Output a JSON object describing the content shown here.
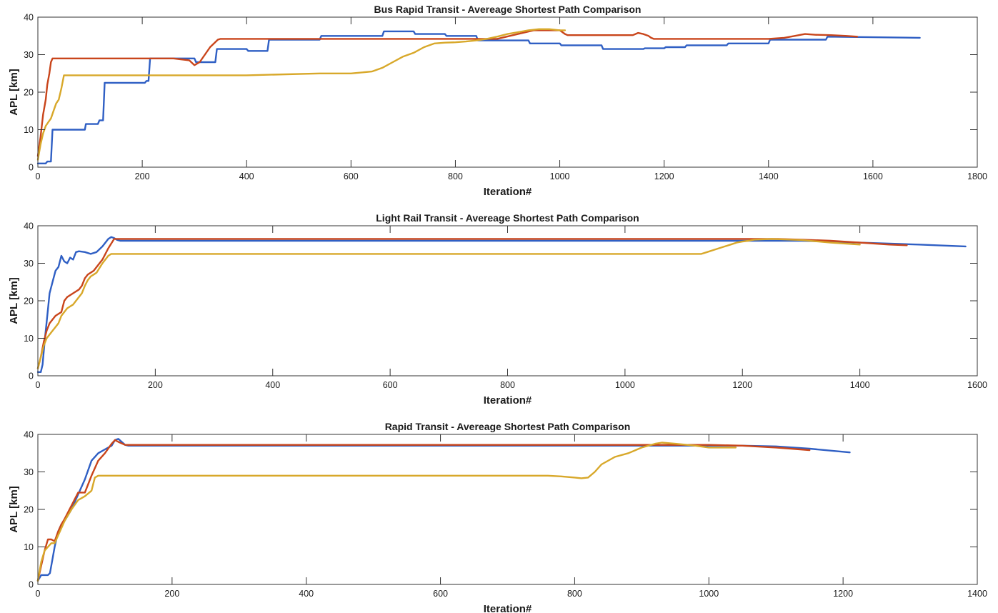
{
  "chart_data": [
    {
      "type": "line",
      "title": "Bus Rapid Transit - Avereage Shortest Path Comparison",
      "xlabel": "Iteration#",
      "ylabel": "APL [km]",
      "xlim": [
        0,
        1800
      ],
      "ylim": [
        0,
        40
      ],
      "xticks": [
        0,
        200,
        400,
        600,
        800,
        1000,
        1200,
        1400,
        1600,
        1800
      ],
      "yticks": [
        0,
        10,
        20,
        30,
        40
      ],
      "grid": false,
      "series": [
        {
          "color": "#2f5fc4",
          "x": [
            0,
            15,
            18,
            25,
            28,
            90,
            92,
            115,
            118,
            125,
            128,
            205,
            208,
            212,
            215,
            300,
            303,
            340,
            343,
            400,
            403,
            440,
            443,
            540,
            543,
            660,
            663,
            720,
            723,
            780,
            783,
            840,
            843,
            940,
            943,
            1000,
            1003,
            1080,
            1083,
            1160,
            1163,
            1200,
            1203,
            1240,
            1243,
            1320,
            1323,
            1400,
            1403,
            1510,
            1513,
            1690
          ],
          "y": [
            1,
            1,
            1.5,
            1.5,
            10,
            10,
            11.5,
            11.5,
            12.5,
            12.5,
            22.5,
            22.5,
            23,
            23,
            29,
            29,
            28,
            28,
            31.5,
            31.5,
            31,
            31,
            34,
            34,
            35,
            35,
            36.2,
            36.2,
            35.5,
            35.5,
            35,
            35,
            33.8,
            33.8,
            33,
            33,
            32.5,
            32.5,
            31.5,
            31.5,
            31.7,
            31.7,
            32,
            32,
            32.5,
            32.5,
            33,
            33,
            34,
            34,
            34.8,
            34.5
          ]
        },
        {
          "color": "#c9451b",
          "x": [
            0,
            5,
            10,
            15,
            18,
            22,
            25,
            28,
            260,
            290,
            300,
            310,
            320,
            330,
            345,
            350,
            880,
            920,
            950,
            980,
            1000,
            1010,
            1015,
            1140,
            1150,
            1160,
            1170,
            1175,
            1180,
            1400,
            1430,
            1450,
            1470,
            1490,
            1520,
            1550,
            1570
          ],
          "y": [
            3,
            8,
            14,
            18,
            22,
            25,
            28,
            29,
            29,
            28.5,
            27.2,
            28,
            30,
            32,
            34,
            34.2,
            34.2,
            35.5,
            36.5,
            36.5,
            36.5,
            35.5,
            35.2,
            35.2,
            35.8,
            35.5,
            35,
            34.5,
            34.2,
            34.2,
            34.5,
            35,
            35.5,
            35.3,
            35.2,
            35,
            34.8
          ]
        },
        {
          "color": "#d8a82a",
          "x": [
            0,
            5,
            10,
            15,
            20,
            25,
            30,
            35,
            40,
            45,
            50,
            400,
            540,
            600,
            640,
            660,
            680,
            700,
            720,
            740,
            760,
            780,
            800,
            820,
            840,
            860,
            880,
            900,
            920,
            940,
            960,
            980,
            1000,
            1010
          ],
          "y": [
            2,
            6,
            9,
            11,
            12,
            13,
            15,
            17,
            18,
            21,
            24.5,
            24.5,
            25,
            25,
            25.5,
            26.5,
            28,
            29.5,
            30.5,
            32,
            33,
            33.2,
            33.3,
            33.5,
            33.8,
            34.2,
            34.8,
            35.5,
            36,
            36.5,
            36.8,
            36.8,
            36.5,
            36.5
          ]
        }
      ]
    },
    {
      "type": "line",
      "title": "Light Rail Transit - Avereage Shortest Path Comparison",
      "xlabel": "Iteration#",
      "ylabel": "APL [km]",
      "xlim": [
        0,
        1600
      ],
      "ylim": [
        0,
        40
      ],
      "xticks": [
        0,
        200,
        400,
        600,
        800,
        1000,
        1200,
        1400,
        1600
      ],
      "yticks": [
        0,
        10,
        20,
        30,
        40
      ],
      "grid": false,
      "series": [
        {
          "color": "#2f5fc4",
          "x": [
            0,
            5,
            8,
            12,
            16,
            20,
            25,
            30,
            35,
            40,
            45,
            50,
            55,
            60,
            65,
            70,
            80,
            90,
            100,
            110,
            120,
            125,
            130,
            135,
            140,
            1200,
            1250,
            1300,
            1400,
            1500,
            1580
          ],
          "y": [
            1,
            1,
            3,
            10,
            16,
            22,
            25,
            28,
            29,
            32,
            30.5,
            30,
            31.5,
            31,
            33,
            33.2,
            33,
            32.5,
            33,
            34.5,
            36.5,
            37,
            36.7,
            36.2,
            36,
            36,
            36,
            36,
            35.5,
            35,
            34.5
          ]
        },
        {
          "color": "#c9451b",
          "x": [
            0,
            5,
            10,
            15,
            20,
            25,
            30,
            35,
            40,
            45,
            50,
            55,
            60,
            65,
            70,
            75,
            80,
            85,
            90,
            95,
            100,
            110,
            120,
            130,
            1220,
            1260,
            1300,
            1350,
            1400,
            1450,
            1480
          ],
          "y": [
            2,
            5,
            9,
            12,
            14,
            15,
            16,
            16.5,
            17,
            20,
            21,
            21.5,
            22,
            22.5,
            23,
            24,
            26,
            27,
            27.5,
            28,
            29,
            31,
            34,
            36.5,
            36.5,
            36.5,
            36.3,
            36,
            35.5,
            35,
            34.8
          ]
        },
        {
          "color": "#d8a82a",
          "x": [
            0,
            5,
            10,
            15,
            20,
            25,
            30,
            35,
            40,
            45,
            50,
            55,
            60,
            65,
            70,
            75,
            80,
            85,
            90,
            95,
            100,
            110,
            120,
            125,
            1130,
            1140,
            1150,
            1160,
            1170,
            1180,
            1190,
            1200,
            1210,
            1220,
            1250,
            1300,
            1350,
            1400
          ],
          "y": [
            2,
            5,
            8,
            10,
            11,
            12,
            13,
            14,
            16,
            17,
            18,
            18.5,
            19,
            20,
            21,
            22,
            24,
            25.5,
            26.5,
            27,
            27.5,
            30,
            32,
            32.5,
            32.5,
            33,
            33.5,
            34,
            34.5,
            35,
            35.5,
            35.8,
            36,
            36.3,
            36.5,
            36.2,
            35.5,
            35
          ]
        }
      ]
    },
    {
      "type": "line",
      "title": "Rapid Transit - Avereage Shortest Path Comparison",
      "xlabel": "Iteration#",
      "ylabel": "APL [km]",
      "xlim": [
        0,
        1400
      ],
      "ylim": [
        0,
        40
      ],
      "xticks": [
        0,
        200,
        400,
        600,
        800,
        1000,
        1200,
        1400
      ],
      "yticks": [
        0,
        10,
        20,
        30,
        40
      ],
      "grid": false,
      "series": [
        {
          "color": "#2f5fc4",
          "x": [
            0,
            5,
            10,
            15,
            18,
            20,
            25,
            30,
            35,
            40,
            50,
            60,
            70,
            80,
            90,
            100,
            110,
            115,
            120,
            125,
            130,
            135,
            1000,
            1050,
            1100,
            1150,
            1210
          ],
          "y": [
            1,
            2.5,
            2.5,
            2.5,
            3,
            5,
            10,
            14,
            16,
            17,
            20,
            24,
            28,
            33,
            35,
            36,
            37,
            38.5,
            38.8,
            38,
            37.2,
            37,
            37,
            37,
            36.8,
            36.2,
            35.2
          ]
        },
        {
          "color": "#c9451b",
          "x": [
            0,
            5,
            10,
            15,
            20,
            25,
            30,
            35,
            40,
            50,
            60,
            70,
            80,
            90,
            100,
            110,
            115,
            120,
            130,
            140,
            1000,
            1050,
            1100,
            1150
          ],
          "y": [
            1,
            5,
            9,
            12,
            12,
            11.5,
            14,
            16,
            17.5,
            21,
            24.5,
            24.5,
            29,
            33,
            35,
            37.5,
            38.5,
            38,
            37.2,
            37.2,
            37.2,
            37,
            36.5,
            35.8
          ]
        },
        {
          "color": "#d8a82a",
          "x": [
            0,
            5,
            10,
            15,
            20,
            25,
            30,
            35,
            40,
            50,
            60,
            70,
            80,
            85,
            90,
            760,
            780,
            800,
            810,
            820,
            830,
            840,
            860,
            880,
            900,
            920,
            930,
            950,
            980,
            1000,
            1040
          ],
          "y": [
            1,
            6,
            9,
            10,
            11,
            11,
            13,
            15,
            17,
            20,
            22.5,
            23.5,
            25,
            28.5,
            29,
            29,
            28.8,
            28.5,
            28.3,
            28.5,
            30,
            32,
            34,
            35,
            36.5,
            37.5,
            37.8,
            37.5,
            37,
            36.5,
            36.5
          ]
        }
      ]
    }
  ]
}
